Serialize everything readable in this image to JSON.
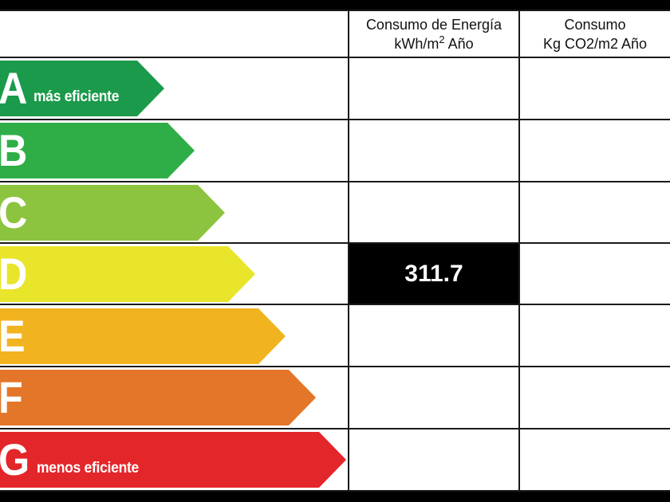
{
  "columns": {
    "energy": {
      "line1": "Consumo de Energía",
      "line2_pre": "kWh/m",
      "line2_sup": "2",
      "line2_post": " Año"
    },
    "emissions": {
      "line1": "Consumo",
      "line2": "Kg CO2/m2 Año"
    }
  },
  "ratings": [
    {
      "letter": "A",
      "note": "más eficiente",
      "color": "#1a9a4a"
    },
    {
      "letter": "B",
      "note": "",
      "color": "#2fae48"
    },
    {
      "letter": "C",
      "note": "",
      "color": "#8dc43f"
    },
    {
      "letter": "D",
      "note": "",
      "color": "#e9e52a"
    },
    {
      "letter": "E",
      "note": "",
      "color": "#f1b420"
    },
    {
      "letter": "F",
      "note": "",
      "color": "#e37628"
    },
    {
      "letter": "G",
      "note": "menos eficiente",
      "color": "#e3262a"
    }
  ],
  "result": {
    "rating": "D",
    "energy_value": "311.7",
    "emissions_value": ""
  }
}
